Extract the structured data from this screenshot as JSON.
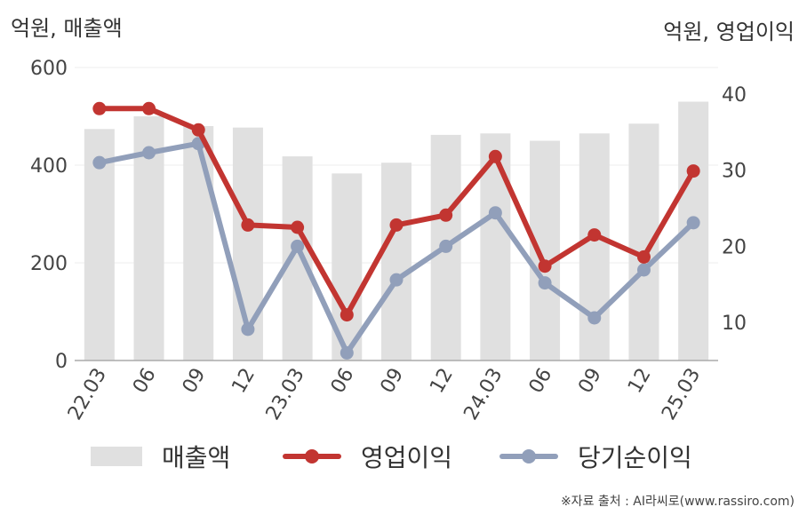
{
  "units": {
    "left": "억원, 매출액",
    "right": "억원, 영업이익"
  },
  "source": "※자료 출처 : AI라씨로(www.rassiro.com)",
  "legend": {
    "revenue": "매출액",
    "operating": "영업이익",
    "net": "당기순이익"
  },
  "colors": {
    "revenue": "#e0e0e0",
    "operating": "#c23531",
    "net": "#919fba",
    "axis": "#aaaaaa",
    "grid": "#eeeeee"
  },
  "chart_data": {
    "type": "bar+line",
    "categories": [
      "22.03",
      "06",
      "09",
      "12",
      "23.03",
      "06",
      "09",
      "12",
      "24.03",
      "06",
      "09",
      "12",
      "25.03"
    ],
    "left_axis": {
      "ticks": [
        0,
        200,
        400,
        600
      ],
      "ylim": [
        0,
        600
      ]
    },
    "right_axis": {
      "ticks": [
        10,
        20,
        30,
        40
      ],
      "ylim": [
        5,
        43.5
      ]
    },
    "series": [
      {
        "name": "매출액",
        "type": "bar",
        "axis": "left",
        "values": [
          474,
          500,
          480,
          477,
          418,
          383,
          405,
          462,
          465,
          450,
          465,
          485,
          530
        ]
      },
      {
        "name": "영업이익",
        "type": "line",
        "axis": "right",
        "values": [
          38.1,
          38.1,
          35.3,
          22.8,
          22.5,
          11.0,
          22.8,
          24.1,
          31.8,
          17.4,
          21.5,
          18.6,
          29.9
        ]
      },
      {
        "name": "당기순이익",
        "type": "line",
        "axis": "right",
        "values": [
          31.0,
          32.3,
          33.5,
          9.1,
          20.0,
          6.0,
          15.6,
          20.0,
          24.4,
          15.2,
          10.6,
          16.9,
          23.1
        ]
      }
    ]
  }
}
